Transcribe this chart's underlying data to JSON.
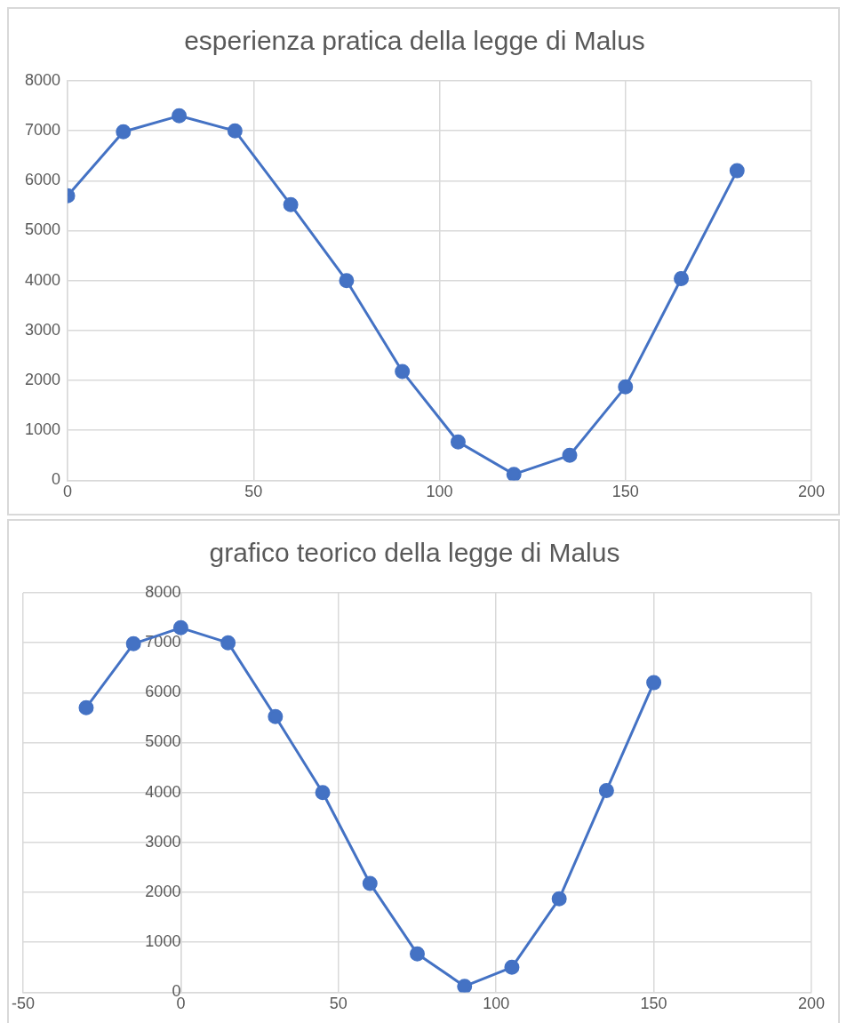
{
  "chart_data": [
    {
      "type": "line",
      "title": "esperienza pratica della legge di Malus",
      "x": [
        0,
        15,
        30,
        45,
        60,
        75,
        90,
        105,
        120,
        135,
        150,
        165,
        180
      ],
      "values": [
        5700,
        6980,
        7300,
        7000,
        5520,
        4000,
        2180,
        770,
        120,
        500,
        1870,
        4040,
        6200
      ],
      "color": "#4472c4",
      "xlim": [
        0,
        200
      ],
      "xticks": [
        0,
        50,
        100,
        150,
        200
      ],
      "ylim": [
        0,
        8000
      ],
      "yticks": [
        0,
        1000,
        2000,
        3000,
        4000,
        5000,
        6000,
        7000,
        8000
      ],
      "grid": true,
      "marker": "circle",
      "line_style": "solid"
    },
    {
      "type": "line",
      "title": "grafico teorico della legge di Malus",
      "x": [
        -30,
        -15,
        0,
        15,
        30,
        45,
        60,
        75,
        90,
        105,
        120,
        135,
        150
      ],
      "values": [
        5700,
        6980,
        7300,
        7000,
        5520,
        4000,
        2180,
        770,
        120,
        500,
        1870,
        4040,
        6200
      ],
      "color": "#4472c4",
      "xlim": [
        -50,
        200
      ],
      "xticks": [
        -50,
        0,
        50,
        100,
        150,
        200
      ],
      "ylim": [
        0,
        8000
      ],
      "yticks": [
        0,
        1000,
        2000,
        3000,
        4000,
        5000,
        6000,
        7000,
        8000
      ],
      "grid": true,
      "marker": "circle",
      "line_style": "solid"
    }
  ]
}
